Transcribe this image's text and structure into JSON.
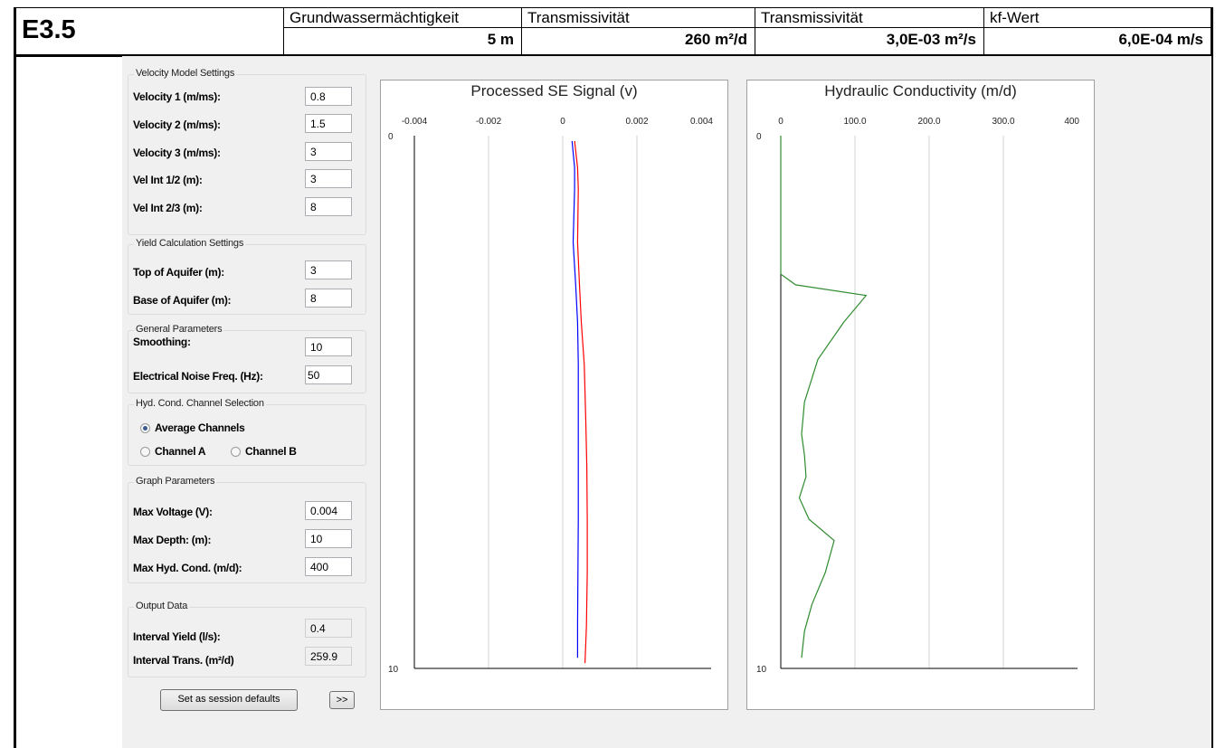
{
  "header": {
    "title": "E3.5",
    "columns": [
      {
        "label": "Grundwassermächtigkeit",
        "value": "5  m"
      },
      {
        "label": "Transmissivität",
        "value": "260  m²/d"
      },
      {
        "label": "Transmissivität",
        "value": "3,0E-03  m²/s"
      },
      {
        "label": "kf-Wert",
        "value": "6,0E-04  m/s"
      }
    ]
  },
  "velocity_settings": {
    "title": "Velocity Model Settings",
    "fields": [
      {
        "label": "Velocity 1 (m/ms):",
        "value": "0.8"
      },
      {
        "label": "Velocity 2 (m/ms):",
        "value": "1.5"
      },
      {
        "label": "Velocity 3 (m/ms):",
        "value": "3"
      },
      {
        "label": "Vel Int 1/2 (m):",
        "value": "3"
      },
      {
        "label": "Vel Int 2/3 (m):",
        "value": "8"
      }
    ]
  },
  "yield_settings": {
    "title": "Yield Calculation Settings",
    "fields": [
      {
        "label": "Top of Aquifer (m):",
        "value": "3"
      },
      {
        "label": "Base of Aquifer (m):",
        "value": "8"
      }
    ]
  },
  "general_params": {
    "title": "General Parameters",
    "fields": [
      {
        "label": "Smoothing:",
        "value": "10"
      },
      {
        "label": "Electrical Noise Freq. (Hz):",
        "value": "50"
      }
    ]
  },
  "channel_selection": {
    "title": "Hyd. Cond. Channel Selection",
    "options": [
      {
        "label": "Average Channels",
        "checked": true
      },
      {
        "label": "Channel A",
        "checked": false
      },
      {
        "label": "Channel B",
        "checked": false
      }
    ]
  },
  "graph_params": {
    "title": "Graph Parameters",
    "fields": [
      {
        "label": "Max Voltage (V):",
        "value": "0.004"
      },
      {
        "label": "Max Depth: (m):",
        "value": "10"
      },
      {
        "label": "Max Hyd. Cond.  (m/d):",
        "value": "400"
      }
    ]
  },
  "output_data": {
    "title": "Output Data",
    "fields": [
      {
        "label": "Interval Yield (l/s):",
        "value": "0.4"
      },
      {
        "label": "Interval Trans. (m²/d)",
        "value": "259.9"
      }
    ]
  },
  "buttons": {
    "session_defaults": "Set as session defaults",
    "expand": ">>"
  },
  "chart_data": [
    {
      "type": "line",
      "title": "Processed SE Signal (v)",
      "x_ticks": [
        "-0.004",
        "-0.002",
        "0",
        "0.002",
        "0.004"
      ],
      "y_ticks": [
        "0",
        "10"
      ],
      "xlim": [
        -0.004,
        0.004
      ],
      "ylim": [
        10,
        0
      ],
      "grid": "vertical",
      "series": [
        {
          "color": "#ff0000",
          "x": [
            0.00032,
            0.0004,
            0.00042,
            0.0004,
            0.00045,
            0.0005,
            0.00058,
            0.00062,
            0.00065,
            0.00066,
            0.00066,
            0.00064,
            0.0006
          ],
          "y": [
            0.1,
            0.6,
            1.0,
            2.0,
            2.8,
            3.5,
            4.3,
            5.3,
            6.2,
            7.2,
            8.2,
            9.2,
            9.9
          ]
        },
        {
          "color": "#0000ff",
          "x": [
            0.00025,
            0.00032,
            0.00032,
            0.00028,
            0.00035,
            0.0004,
            0.00042,
            0.00042,
            0.00042,
            0.00042,
            0.00041,
            0.0004,
            0.0004
          ],
          "y": [
            0.1,
            0.6,
            1.0,
            2.0,
            2.8,
            3.5,
            4.3,
            5.3,
            6.2,
            7.2,
            8.2,
            9.2,
            9.8
          ]
        }
      ]
    },
    {
      "type": "line",
      "title": "Hydraulic Conductivity (m/d)",
      "x_ticks": [
        "0",
        "100.0",
        "200.0",
        "300.0",
        "400"
      ],
      "y_ticks": [
        "0",
        "10"
      ],
      "xlim": [
        0,
        400
      ],
      "ylim": [
        10,
        0
      ],
      "grid": "vertical",
      "series": [
        {
          "color": "#2e8b2e",
          "x": [
            0,
            0,
            0,
            20,
            115,
            85,
            50,
            32,
            28,
            32,
            34,
            25,
            38,
            72,
            60,
            42,
            32,
            28
          ],
          "y": [
            0,
            2.5,
            2.6,
            2.8,
            3.0,
            3.5,
            4.2,
            5.0,
            5.6,
            6.0,
            6.4,
            6.8,
            7.2,
            7.6,
            8.2,
            8.8,
            9.3,
            9.8
          ]
        }
      ]
    }
  ]
}
